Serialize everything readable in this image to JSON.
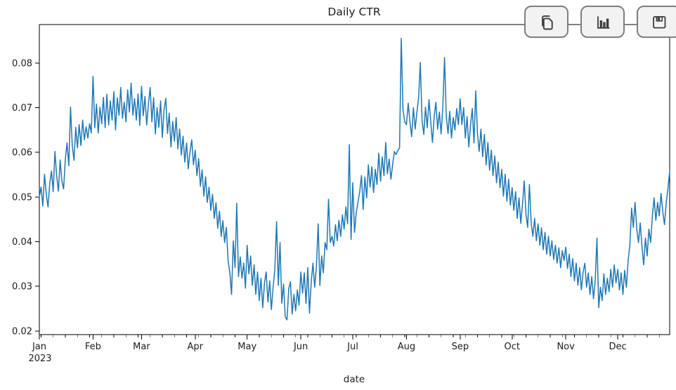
{
  "toolbar": {
    "buttons": [
      {
        "label": "copy",
        "icon": "copy-icon"
      },
      {
        "label": "chart",
        "icon": "bar-chart-icon"
      },
      {
        "label": "save",
        "icon": "save-icon"
      }
    ],
    "button_bg": "#f2f2f2",
    "button_border": "#7e7e7e",
    "icon_color": "#3d3d3d"
  },
  "chart_data": {
    "type": "line",
    "title": "Daily CTR",
    "xlabel": "date",
    "ylabel": "",
    "line_color": "#1f77b4",
    "spine_color": "#000000",
    "text_color": "#1c1c1c",
    "legend": "none",
    "grid": false,
    "y_ticks": [
      0.02,
      0.03,
      0.04,
      0.05,
      0.06,
      0.07,
      0.08
    ],
    "ylim": [
      0.0192,
      0.0886
    ],
    "x_tick_labels": [
      "Jan",
      "Feb",
      "Mar",
      "Apr",
      "May",
      "Jun",
      "Jul",
      "Aug",
      "Sep",
      "Oct",
      "Nov",
      "Dec"
    ],
    "x_tick_year": "2023",
    "x_tick_day_offsets": [
      0,
      31,
      59,
      90,
      120,
      151,
      181,
      212,
      243,
      273,
      304,
      334
    ],
    "minor_tick_step_days": 7,
    "values": [
      0.05,
      0.0522,
      0.048,
      0.0551,
      0.0505,
      0.0478,
      0.053,
      0.0558,
      0.0512,
      0.0602,
      0.0548,
      0.0513,
      0.0583,
      0.0536,
      0.0518,
      0.0585,
      0.0621,
      0.057,
      0.0701,
      0.0616,
      0.0582,
      0.0656,
      0.061,
      0.0662,
      0.0615,
      0.0672,
      0.0628,
      0.0657,
      0.0632,
      0.0664,
      0.0643,
      0.077,
      0.0655,
      0.0708,
      0.0643,
      0.0701,
      0.0664,
      0.0723,
      0.0655,
      0.073,
      0.0661,
      0.0715,
      0.0672,
      0.0736,
      0.065,
      0.0722,
      0.0683,
      0.0745,
      0.0676,
      0.0712,
      0.0668,
      0.074,
      0.069,
      0.0755,
      0.0683,
      0.072,
      0.0672,
      0.0731,
      0.066,
      0.0748,
      0.0682,
      0.0725,
      0.0661,
      0.071,
      0.0745,
      0.0668,
      0.0722,
      0.0641,
      0.07,
      0.0656,
      0.0715,
      0.0633,
      0.0694,
      0.0721,
      0.0642,
      0.0688,
      0.0612,
      0.0669,
      0.0625,
      0.0678,
      0.0608,
      0.0652,
      0.0594,
      0.0636,
      0.0578,
      0.0621,
      0.0563,
      0.0601,
      0.0628,
      0.0572,
      0.0605,
      0.0548,
      0.0586,
      0.0524,
      0.0561,
      0.0502,
      0.0545,
      0.0488,
      0.0522,
      0.047,
      0.0506,
      0.0452,
      0.0487,
      0.043,
      0.0468,
      0.0412,
      0.0447,
      0.0398,
      0.0432,
      0.0358,
      0.033,
      0.0282,
      0.0402,
      0.0342,
      0.0486,
      0.0322,
      0.0366,
      0.0318,
      0.0352,
      0.0296,
      0.0392,
      0.0328,
      0.0368,
      0.0302,
      0.0348,
      0.0282,
      0.0332,
      0.0268,
      0.0318,
      0.0252,
      0.0308,
      0.0332,
      0.0265,
      0.0312,
      0.0248,
      0.0298,
      0.0338,
      0.0445,
      0.0302,
      0.0398,
      0.0262,
      0.0305,
      0.0232,
      0.0225,
      0.0295,
      0.031,
      0.0238,
      0.0282,
      0.0245,
      0.0292,
      0.0258,
      0.0332,
      0.0285,
      0.033,
      0.0262,
      0.0342,
      0.024,
      0.031,
      0.0352,
      0.0298,
      0.0345,
      0.044,
      0.0302,
      0.0368,
      0.033,
      0.0398,
      0.0382,
      0.0495,
      0.0398,
      0.0412,
      0.039,
      0.0438,
      0.0402,
      0.0448,
      0.0412,
      0.046,
      0.0428,
      0.0478,
      0.044,
      0.0617,
      0.0405,
      0.0532,
      0.0421,
      0.0465,
      0.0488,
      0.0512,
      0.0548,
      0.0472,
      0.0545,
      0.0498,
      0.0572,
      0.0522,
      0.0568,
      0.051,
      0.0562,
      0.0528,
      0.0598,
      0.0535,
      0.059,
      0.0548,
      0.0622,
      0.0552,
      0.0585,
      0.054,
      0.0572,
      0.0602,
      0.0595,
      0.0604,
      0.061,
      0.0855,
      0.0695,
      0.0668,
      0.0662,
      0.071,
      0.0668,
      0.0635,
      0.07,
      0.0652,
      0.0688,
      0.0722,
      0.0801,
      0.0672,
      0.064,
      0.0701,
      0.0655,
      0.0718,
      0.067,
      0.0622,
      0.068,
      0.0712,
      0.0652,
      0.069,
      0.0641,
      0.0702,
      0.0812,
      0.068,
      0.0642,
      0.0692,
      0.0632,
      0.0678,
      0.065,
      0.0698,
      0.0662,
      0.072,
      0.0662,
      0.07,
      0.0632,
      0.068,
      0.0612,
      0.0661,
      0.0698,
      0.0621,
      0.0738,
      0.0642,
      0.0602,
      0.0652,
      0.059,
      0.064,
      0.0572,
      0.0622,
      0.056,
      0.0605,
      0.0548,
      0.0592,
      0.0532,
      0.0578,
      0.0521,
      0.0562,
      0.0502,
      0.0551,
      0.0491,
      0.054,
      0.0482,
      0.0521,
      0.047,
      0.0512,
      0.0452,
      0.0498,
      0.0441,
      0.0482,
      0.0536,
      0.0461,
      0.0432,
      0.0528,
      0.0443,
      0.0412,
      0.0452,
      0.0402,
      0.044,
      0.0392,
      0.0431,
      0.0382,
      0.0421,
      0.0372,
      0.0412,
      0.0368,
      0.0402,
      0.036,
      0.0392,
      0.0352,
      0.0386,
      0.0342,
      0.038,
      0.0358,
      0.0388,
      0.034,
      0.0372,
      0.0322,
      0.0362,
      0.0312,
      0.0352,
      0.0302,
      0.0342,
      0.0292,
      0.0332,
      0.0352,
      0.0298,
      0.033,
      0.0282,
      0.0322,
      0.0272,
      0.0312,
      0.0408,
      0.0252,
      0.0298,
      0.0268,
      0.0328,
      0.0282,
      0.0318,
      0.0288,
      0.0338,
      0.0298,
      0.0348,
      0.0308,
      0.0338,
      0.0292,
      0.033,
      0.0282,
      0.0336,
      0.0298,
      0.0358,
      0.0392,
      0.0475,
      0.0432,
      0.0488,
      0.0428,
      0.0398,
      0.0442,
      0.0388,
      0.0348,
      0.0408,
      0.0368,
      0.0428,
      0.0398,
      0.0458,
      0.0498,
      0.0448,
      0.0488,
      0.0458,
      0.0508,
      0.0468,
      0.0438,
      0.0488,
      0.0518,
      0.0558
    ]
  }
}
